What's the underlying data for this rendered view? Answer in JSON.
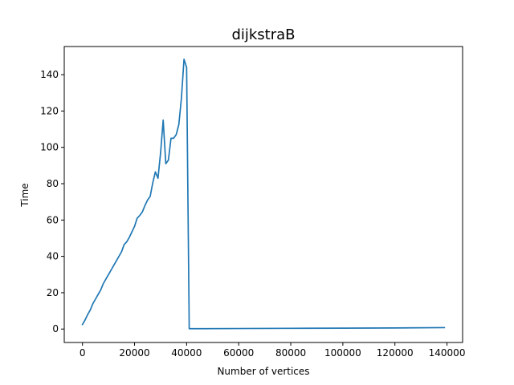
{
  "chart_data": {
    "type": "line",
    "title": "dijkstraB",
    "xlabel": "Number of vertices",
    "ylabel": "Time",
    "xlim": [
      -7000,
      146000
    ],
    "ylim": [
      -7.4,
      155.5
    ],
    "xticks": [
      0,
      20000,
      40000,
      60000,
      80000,
      100000,
      120000,
      140000
    ],
    "yticks": [
      0,
      20,
      40,
      60,
      80,
      100,
      120,
      140
    ],
    "grid": false,
    "color": "#1f77b4",
    "series": [
      {
        "x": [
          0,
          1000,
          2000,
          3000,
          4000,
          5000,
          6000,
          7000,
          8000,
          9000,
          10000,
          11000,
          12000,
          13000,
          14000,
          15000,
          16000,
          17000,
          18000,
          19000,
          20000,
          21000,
          22000,
          23000,
          24000,
          25000,
          26000,
          27000,
          28000,
          29000,
          30000,
          31000,
          32000,
          33000,
          34000,
          35000,
          36000,
          37000,
          38000,
          39000,
          40000,
          41000,
          45000,
          60000,
          80000,
          100000,
          120000,
          139000
        ],
        "y": [
          2.5,
          5,
          8,
          10.5,
          14,
          16.5,
          19,
          21.5,
          25,
          27.5,
          30,
          32.5,
          35,
          37.5,
          40,
          42.5,
          46.5,
          48,
          50.5,
          53.5,
          56.5,
          61,
          62.5,
          64.5,
          68,
          71,
          73,
          80.5,
          86.5,
          83,
          97,
          115,
          91,
          93,
          105,
          105,
          107,
          112.5,
          127,
          148.5,
          144,
          0.2,
          0.2,
          0.3,
          0.4,
          0.5,
          0.6,
          0.8
        ]
      }
    ]
  }
}
